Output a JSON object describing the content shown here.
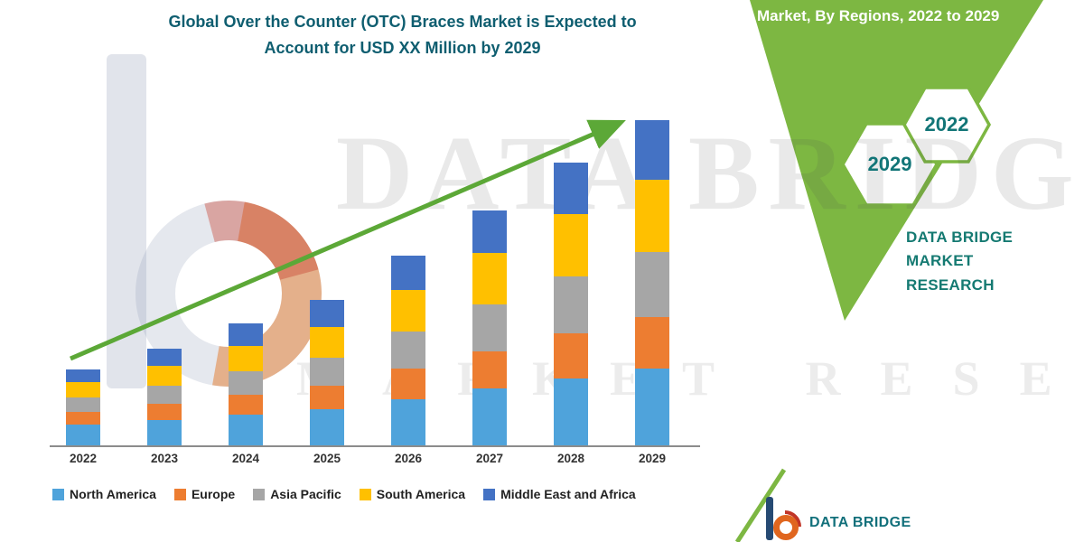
{
  "header": {
    "title_line1": "Global Over the Counter (OTC) Braces Market is Expected to",
    "title_line2": "Account for USD XX Million by 2029",
    "title_color": "#0F5E70"
  },
  "right_panel": {
    "heading": "Market, By Regions, 2022 to 2029",
    "hexagons": [
      {
        "label": "2029"
      },
      {
        "label": "2022"
      }
    ],
    "brand_line1": "DATA BRIDGE MARKET",
    "brand_line2": "RESEARCH",
    "band_green": "#7DB742",
    "teal": "#157A72"
  },
  "watermark": {
    "line1": "DATA BRIDGE",
    "line2": "MARKET RESEARCH"
  },
  "footer_logo": {
    "text": "DATA BRIDGE"
  },
  "chart_data": {
    "type": "bar",
    "stacked": true,
    "title": "Global Over the Counter (OTC) Braces Market is Expected to Account for USD XX Million by 2029",
    "x_categories": [
      "2022",
      "2023",
      "2024",
      "2025",
      "2026",
      "2027",
      "2028",
      "2029"
    ],
    "series": [
      {
        "name": "North America",
        "color": "#4FA3DB",
        "values": [
          27,
          33,
          40,
          47,
          60,
          74,
          88,
          100
        ]
      },
      {
        "name": "Europe",
        "color": "#ED7D31",
        "values": [
          17,
          21,
          26,
          31,
          40,
          49,
          59,
          68
        ]
      },
      {
        "name": "Asia Pacific",
        "color": "#A6A6A6",
        "values": [
          19,
          24,
          31,
          37,
          49,
          61,
          74,
          85
        ]
      },
      {
        "name": "South America",
        "color": "#FFC000",
        "values": [
          20,
          26,
          33,
          40,
          54,
          68,
          82,
          95
        ]
      },
      {
        "name": "Middle East and Africa",
        "color": "#4472C4",
        "values": [
          17,
          23,
          29,
          35,
          45,
          56,
          68,
          78
        ]
      }
    ],
    "note": "No numeric value axis shown in source; series values are relative estimates of bar-segment heights",
    "value_axis_labels_shown": false,
    "gridlines": false,
    "legend_position": "bottom",
    "trend_arrow": true,
    "arrow_color": "#5CA837",
    "axis_color": "#8c8c8c"
  }
}
